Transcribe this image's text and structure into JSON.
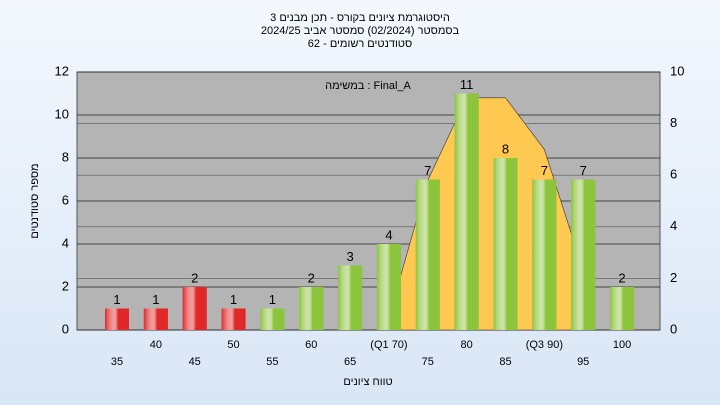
{
  "chart_data": {
    "type": "bar",
    "title": "היסטוגרמת ציונים בקורס - תכן מבנים 3",
    "subtitle": "בסמסטר  (02/2024)  סמסטר אביב 2024/25",
    "subtitle2": "62 - סטודנטים רשומים",
    "annotation": "במשימה : Final_A",
    "y_label": "מספר סטודנטים",
    "x_label": "טווח ציונים",
    "categories": [
      "35",
      "40",
      "45",
      "50",
      "55",
      "60",
      "65",
      "(Q1 70)",
      "75",
      "80",
      "85",
      "(Q3 90)",
      "95",
      "100"
    ],
    "values": [
      1,
      1,
      2,
      1,
      1,
      2,
      3,
      4,
      7,
      11,
      8,
      7,
      7,
      2
    ],
    "colors": [
      "#e02828",
      "#e02828",
      "#e02828",
      "#e02828",
      "#8cc43c",
      "#8cc43c",
      "#8cc43c",
      "#8cc43c",
      "#8cc43c",
      "#8cc43c",
      "#8cc43c",
      "#8cc43c",
      "#8cc43c",
      "#8cc43c"
    ],
    "curve": {
      "color": "#ffc850",
      "axis": "y2",
      "values": [
        null,
        null,
        null,
        null,
        null,
        null,
        null,
        0.5,
        5.8,
        9,
        9,
        7,
        2.3,
        null
      ]
    },
    "ylim": [
      0,
      12
    ],
    "yticks": [
      0,
      2,
      4,
      6,
      8,
      10,
      12
    ],
    "y2lim": [
      0,
      10
    ],
    "y2ticks": [
      0,
      2,
      4,
      6,
      8,
      10
    ],
    "grid": true
  }
}
